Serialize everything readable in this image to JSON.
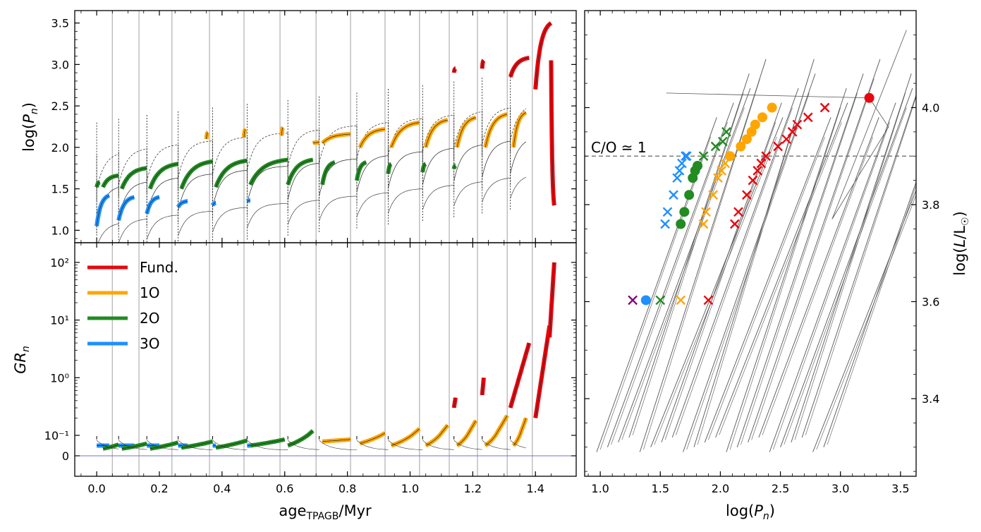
{
  "chart_data": [
    {
      "id": "period-vs-age",
      "type": "line",
      "panel": "top-left",
      "ylabel": "log(P_n)",
      "xlim": [
        -0.07,
        1.53
      ],
      "ylim": [
        0.85,
        3.65
      ],
      "yticks": [
        "1.0",
        "1.5",
        "2.0",
        "2.5",
        "3.0",
        "3.5"
      ],
      "ytick_values": [
        1.0,
        1.5,
        2.0,
        2.5,
        3.0,
        3.5
      ],
      "thermal_pulse_ages": [
        0.05,
        0.135,
        0.24,
        0.36,
        0.47,
        0.585,
        0.7,
        0.81,
        0.92,
        1.03,
        1.125,
        1.215,
        1.31,
        1.39
      ],
      "pulse_starts": [
        0.0,
        0.07,
        0.16,
        0.26,
        0.37,
        0.48,
        0.61,
        0.71,
        0.83,
        0.93,
        1.04,
        1.14,
        1.23,
        1.32
      ],
      "dominant_mode_segments": [
        {
          "mode": "3O",
          "from": 0.0,
          "to": 0.04,
          "y0": 1.05,
          "y1": 1.42
        },
        {
          "mode": "3O",
          "from": 0.07,
          "to": 0.12,
          "y0": 1.12,
          "y1": 1.4
        },
        {
          "mode": "3O",
          "from": 0.16,
          "to": 0.2,
          "y0": 1.2,
          "y1": 1.4
        },
        {
          "mode": "3O",
          "from": 0.26,
          "to": 0.29,
          "y0": 1.28,
          "y1": 1.35
        },
        {
          "mode": "3O",
          "from": 0.37,
          "to": 0.38,
          "y0": 1.3,
          "y1": 1.33
        },
        {
          "mode": "3O",
          "from": 0.48,
          "to": 0.49,
          "y0": 1.35,
          "y1": 1.36
        },
        {
          "mode": "2O",
          "from": 0.0,
          "to": 0.01,
          "y0": 1.52,
          "y1": 1.58
        },
        {
          "mode": "2O",
          "from": 0.02,
          "to": 0.07,
          "y0": 1.52,
          "y1": 1.66
        },
        {
          "mode": "2O",
          "from": 0.08,
          "to": 0.16,
          "y0": 1.5,
          "y1": 1.75
        },
        {
          "mode": "2O",
          "from": 0.17,
          "to": 0.26,
          "y0": 1.5,
          "y1": 1.8
        },
        {
          "mode": "2O",
          "from": 0.27,
          "to": 0.37,
          "y0": 1.5,
          "y1": 1.83
        },
        {
          "mode": "2O",
          "from": 0.38,
          "to": 0.48,
          "y0": 1.52,
          "y1": 1.84
        },
        {
          "mode": "2O",
          "from": 0.49,
          "to": 0.61,
          "y0": 1.55,
          "y1": 1.85
        },
        {
          "mode": "2O",
          "from": 0.61,
          "to": 0.69,
          "y0": 1.55,
          "y1": 1.85
        },
        {
          "mode": "2O",
          "from": 0.72,
          "to": 0.76,
          "y0": 1.55,
          "y1": 1.82
        },
        {
          "mode": "2O",
          "from": 0.83,
          "to": 0.86,
          "y0": 1.6,
          "y1": 1.82
        },
        {
          "mode": "2O",
          "from": 0.93,
          "to": 0.94,
          "y0": 1.68,
          "y1": 1.8
        },
        {
          "mode": "2O",
          "from": 1.04,
          "to": 1.05,
          "y0": 1.7,
          "y1": 1.8
        },
        {
          "mode": "2O",
          "from": 1.14,
          "to": 1.145,
          "y0": 1.74,
          "y1": 1.78
        },
        {
          "mode": "1O",
          "from": 0.35,
          "to": 0.355,
          "y0": 2.1,
          "y1": 2.18
        },
        {
          "mode": "1O",
          "from": 0.47,
          "to": 0.475,
          "y0": 2.12,
          "y1": 2.22
        },
        {
          "mode": "1O",
          "from": 0.59,
          "to": 0.595,
          "y0": 2.14,
          "y1": 2.24
        },
        {
          "mode": "1O",
          "from": 0.69,
          "to": 0.71,
          "y0": 2.05,
          "y1": 2.06
        },
        {
          "mode": "1O",
          "from": 0.72,
          "to": 0.81,
          "y0": 2.05,
          "y1": 2.16
        },
        {
          "mode": "1O",
          "from": 0.84,
          "to": 0.92,
          "y0": 2.0,
          "y1": 2.22
        },
        {
          "mode": "1O",
          "from": 0.94,
          "to": 1.03,
          "y0": 2.0,
          "y1": 2.3
        },
        {
          "mode": "1O",
          "from": 1.05,
          "to": 1.12,
          "y0": 2.0,
          "y1": 2.33
        },
        {
          "mode": "1O",
          "from": 1.15,
          "to": 1.21,
          "y0": 2.0,
          "y1": 2.36
        },
        {
          "mode": "1O",
          "from": 1.24,
          "to": 1.31,
          "y0": 2.0,
          "y1": 2.4
        },
        {
          "mode": "1O",
          "from": 1.33,
          "to": 1.37,
          "y0": 2.0,
          "y1": 2.42
        },
        {
          "mode": "Fund.",
          "from": 1.14,
          "to": 1.145,
          "y0": 2.9,
          "y1": 2.95
        },
        {
          "mode": "Fund.",
          "from": 1.23,
          "to": 1.235,
          "y0": 2.95,
          "y1": 3.05
        },
        {
          "mode": "Fund.",
          "from": 1.32,
          "to": 1.38,
          "y0": 2.85,
          "y1": 3.08
        },
        {
          "mode": "Fund.",
          "from": 1.4,
          "to": 1.45,
          "y0": 2.7,
          "y1": 3.5
        },
        {
          "mode": "Fund.",
          "from": 1.45,
          "to": 1.46,
          "y0": 3.05,
          "y1": 1.3
        }
      ]
    },
    {
      "id": "growth-rate-vs-age",
      "type": "line",
      "panel": "bottom-left",
      "ylabel": "GR_n",
      "xlabel": "age_TPAGB/Myr",
      "xlim": [
        -0.07,
        1.53
      ],
      "xticks": [
        "0.0",
        "0.2",
        "0.4",
        "0.6",
        "0.8",
        "1.0",
        "1.2",
        "1.4"
      ],
      "xtick_values": [
        0.0,
        0.2,
        0.4,
        0.6,
        0.8,
        1.0,
        1.2,
        1.4
      ],
      "yscale": "symlog",
      "yticks": [
        "0",
        "10⁻¹",
        "10⁰",
        "10¹",
        "10²"
      ],
      "ytick_values": [
        0,
        0.1,
        1,
        10,
        100
      ],
      "reference_line_y": 0,
      "legend": {
        "location": "top-left",
        "entries": [
          {
            "label": "Fund.",
            "color": "#e8070e"
          },
          {
            "label": "1O",
            "color": "#ffa500"
          },
          {
            "label": "2O",
            "color": "#228b22"
          },
          {
            "label": "3O",
            "color": "#1e90ff"
          }
        ]
      }
    },
    {
      "id": "luminosity-vs-period",
      "type": "scatter",
      "panel": "right",
      "xlabel": "log(P_n)",
      "ylabel": "log(L/L☉)",
      "xlim": [
        0.87,
        3.63
      ],
      "ylim": [
        3.24,
        4.2
      ],
      "xticks": [
        "1.0",
        "1.5",
        "2.0",
        "2.5",
        "3.0",
        "3.5"
      ],
      "xtick_values": [
        1.0,
        1.5,
        2.0,
        2.5,
        3.0,
        3.5
      ],
      "yticks": [
        "3.4",
        "3.6",
        "3.8",
        "4.0"
      ],
      "ytick_values": [
        3.4,
        3.6,
        3.8,
        4.0
      ],
      "hline": {
        "y": 3.9,
        "label": "C/O ≃ 1"
      },
      "points": [
        {
          "mode": "3O",
          "marker": "x",
          "x": 1.54,
          "y": 3.76
        },
        {
          "mode": "3O",
          "marker": "x",
          "x": 1.56,
          "y": 3.785
        },
        {
          "mode": "3O",
          "marker": "x",
          "x": 1.61,
          "y": 3.82
        },
        {
          "mode": "3O",
          "marker": "x",
          "x": 1.64,
          "y": 3.855
        },
        {
          "mode": "3O",
          "marker": "x",
          "x": 1.66,
          "y": 3.87
        },
        {
          "mode": "3O",
          "marker": "x",
          "x": 1.68,
          "y": 3.885
        },
        {
          "mode": "3O",
          "marker": "x",
          "x": 1.71,
          "y": 3.9
        },
        {
          "mode": "3O",
          "marker": "x",
          "x": 1.72,
          "y": 3.9
        },
        {
          "mode": "3O",
          "marker": "o",
          "x": 1.38,
          "y": 3.603
        },
        {
          "mode": "2O",
          "marker": "o",
          "x": 1.67,
          "y": 3.76
        },
        {
          "mode": "2O",
          "marker": "o",
          "x": 1.7,
          "y": 3.785
        },
        {
          "mode": "2O",
          "marker": "o",
          "x": 1.74,
          "y": 3.82
        },
        {
          "mode": "2O",
          "marker": "o",
          "x": 1.77,
          "y": 3.855
        },
        {
          "mode": "2O",
          "marker": "o",
          "x": 1.79,
          "y": 3.87
        },
        {
          "mode": "2O",
          "marker": "o",
          "x": 1.81,
          "y": 3.88
        },
        {
          "mode": "2O",
          "marker": "x",
          "x": 1.86,
          "y": 3.9
        },
        {
          "mode": "2O",
          "marker": "x",
          "x": 1.96,
          "y": 3.92
        },
        {
          "mode": "2O",
          "marker": "x",
          "x": 2.02,
          "y": 3.93
        },
        {
          "mode": "2O",
          "marker": "x",
          "x": 2.05,
          "y": 3.95
        },
        {
          "mode": "2O",
          "marker": "x",
          "x": 1.5,
          "y": 3.603
        },
        {
          "mode": "1O",
          "marker": "x",
          "x": 1.86,
          "y": 3.76
        },
        {
          "mode": "1O",
          "marker": "x",
          "x": 1.88,
          "y": 3.785
        },
        {
          "mode": "1O",
          "marker": "x",
          "x": 1.94,
          "y": 3.82
        },
        {
          "mode": "1O",
          "marker": "x",
          "x": 1.98,
          "y": 3.855
        },
        {
          "mode": "1O",
          "marker": "x",
          "x": 2.01,
          "y": 3.87
        },
        {
          "mode": "1O",
          "marker": "x",
          "x": 2.04,
          "y": 3.885
        },
        {
          "mode": "1O",
          "marker": "o",
          "x": 2.08,
          "y": 3.9
        },
        {
          "mode": "1O",
          "marker": "o",
          "x": 2.17,
          "y": 3.92
        },
        {
          "mode": "1O",
          "marker": "o",
          "x": 2.22,
          "y": 3.935
        },
        {
          "mode": "1O",
          "marker": "o",
          "x": 2.26,
          "y": 3.95
        },
        {
          "mode": "1O",
          "marker": "o",
          "x": 2.29,
          "y": 3.965
        },
        {
          "mode": "1O",
          "marker": "o",
          "x": 2.35,
          "y": 3.98
        },
        {
          "mode": "1O",
          "marker": "o",
          "x": 2.43,
          "y": 4.0
        },
        {
          "mode": "1O",
          "marker": "x",
          "x": 1.67,
          "y": 3.603
        },
        {
          "mode": "Fund.",
          "marker": "x",
          "x": 2.12,
          "y": 3.76
        },
        {
          "mode": "Fund.",
          "marker": "x",
          "x": 2.15,
          "y": 3.785
        },
        {
          "mode": "Fund.",
          "marker": "x",
          "x": 2.22,
          "y": 3.82
        },
        {
          "mode": "Fund.",
          "marker": "x",
          "x": 2.27,
          "y": 3.85
        },
        {
          "mode": "Fund.",
          "marker": "x",
          "x": 2.31,
          "y": 3.87
        },
        {
          "mode": "Fund.",
          "marker": "x",
          "x": 2.34,
          "y": 3.885
        },
        {
          "mode": "Fund.",
          "marker": "x",
          "x": 2.38,
          "y": 3.9
        },
        {
          "mode": "Fund.",
          "marker": "x",
          "x": 2.48,
          "y": 3.92
        },
        {
          "mode": "Fund.",
          "marker": "x",
          "x": 2.55,
          "y": 3.935
        },
        {
          "mode": "Fund.",
          "marker": "x",
          "x": 2.6,
          "y": 3.95
        },
        {
          "mode": "Fund.",
          "marker": "x",
          "x": 2.64,
          "y": 3.965
        },
        {
          "mode": "Fund.",
          "marker": "x",
          "x": 2.73,
          "y": 3.98
        },
        {
          "mode": "Fund.",
          "marker": "x",
          "x": 2.87,
          "y": 4.0
        },
        {
          "mode": "Fund.",
          "marker": "o",
          "x": 3.24,
          "y": 4.02
        },
        {
          "mode": "Fund.",
          "marker": "x",
          "x": 1.9,
          "y": 3.603
        },
        {
          "mode": "other",
          "marker": "x",
          "x": 1.27,
          "y": 3.603
        }
      ]
    }
  ],
  "colors": {
    "Fund.": "#e8070e",
    "1O": "#ffa500",
    "2O": "#228b22",
    "3O": "#1e90ff",
    "other": "#800080",
    "track": "#555555",
    "pulse_line": "#bbbbbb",
    "reference_line": "#6f6fd8"
  }
}
